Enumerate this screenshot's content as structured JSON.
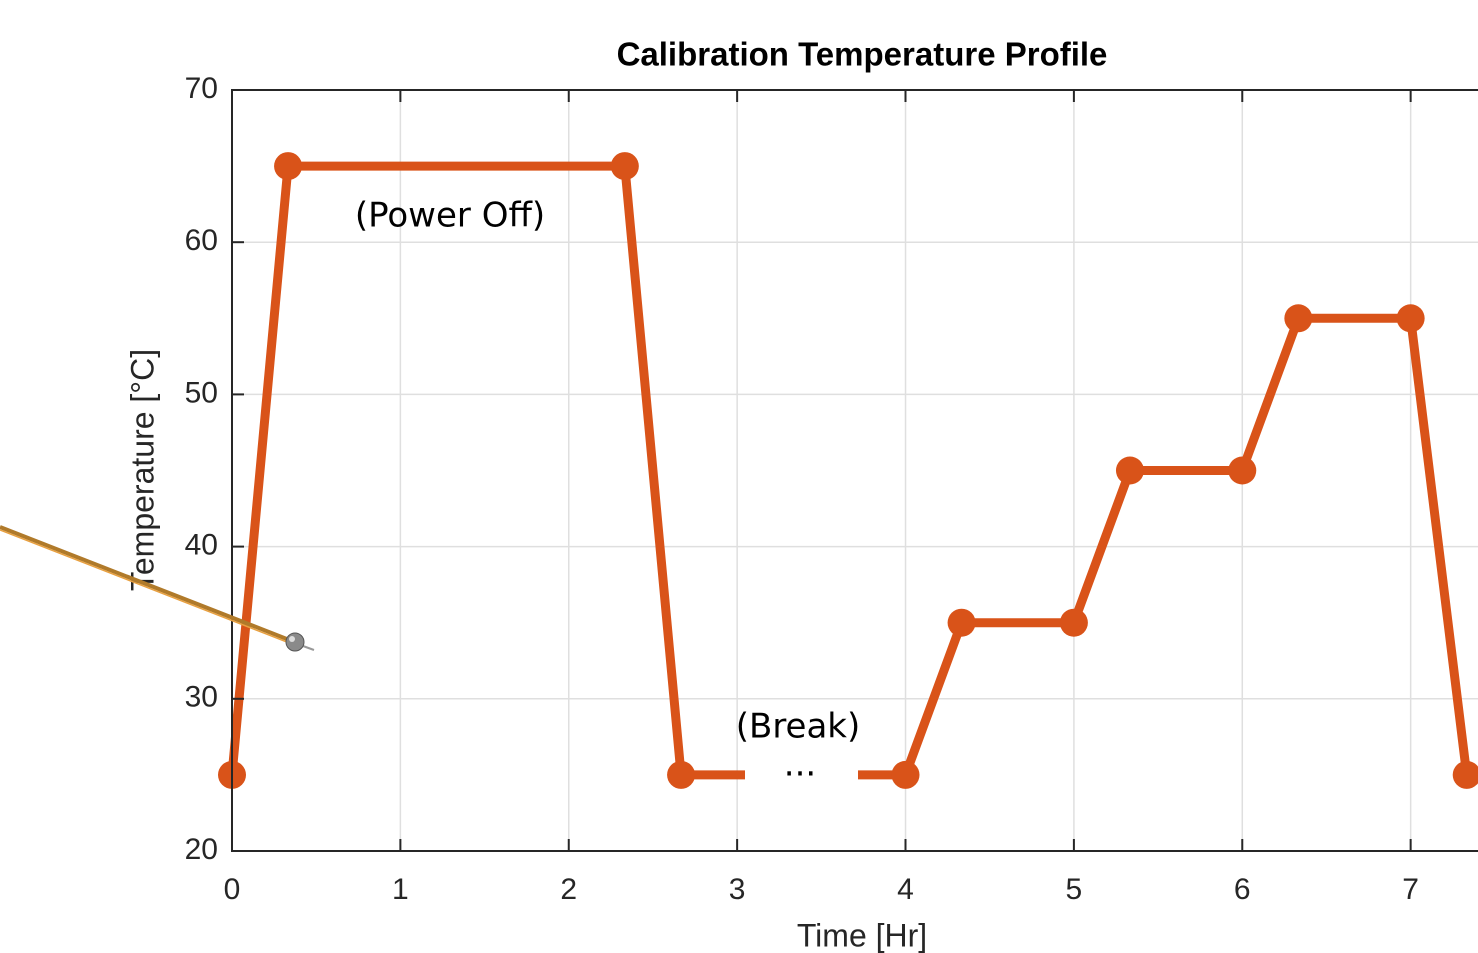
{
  "chart_data": {
    "type": "line",
    "title": "Calibration Temperature Profile",
    "xlabel": "Time [Hr]",
    "ylabel": "Temperature [°C]",
    "x": [
      0,
      0.333,
      2.333,
      2.667,
      4,
      4.333,
      5,
      5.333,
      6,
      6.333,
      7,
      7.333
    ],
    "series": [
      {
        "name": "Temperature",
        "color": "#d95319",
        "values": [
          25,
          65,
          65,
          25,
          25,
          35,
          35,
          45,
          45,
          55,
          55,
          25
        ]
      }
    ],
    "xlim": [
      0,
      7.4
    ],
    "xticks": [
      0,
      1,
      2,
      3,
      4,
      5,
      6,
      7
    ],
    "ylim": [
      20,
      70
    ],
    "yticks": [
      20,
      30,
      40,
      50,
      60,
      70
    ],
    "grid": true,
    "annotations": [
      "(Power Off)",
      "(Break)",
      "..."
    ]
  }
}
